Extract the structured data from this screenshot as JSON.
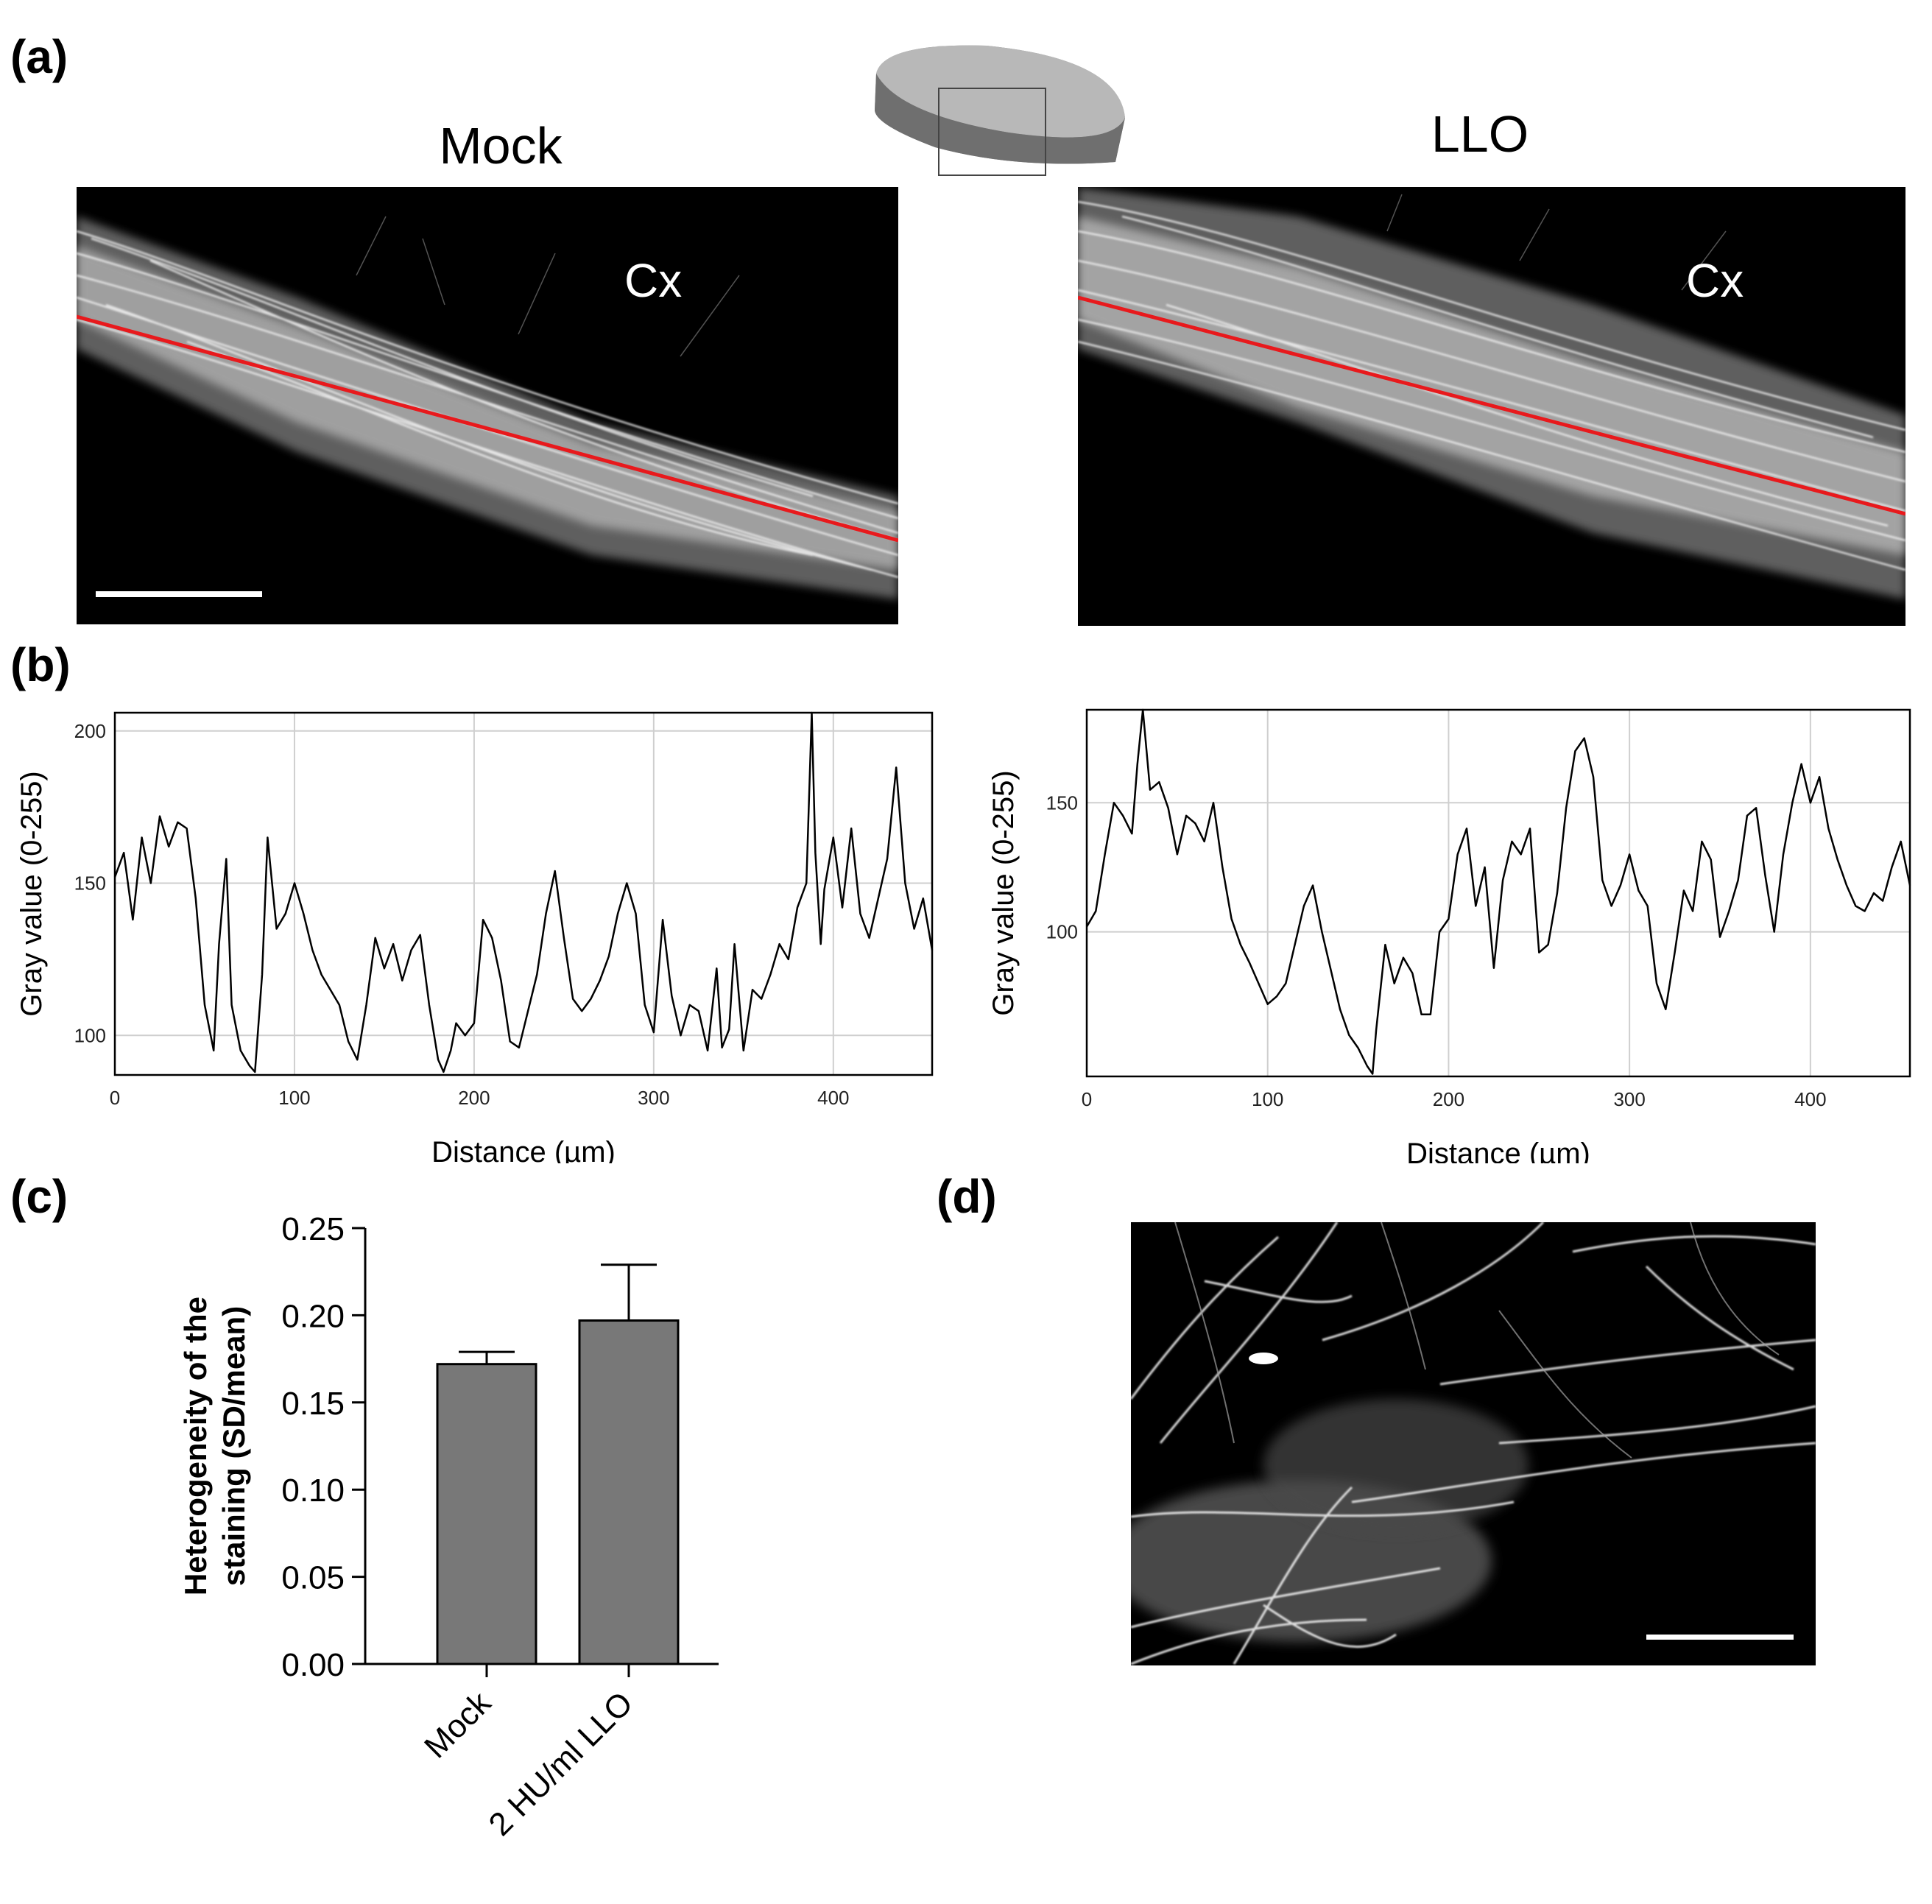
{
  "panels": {
    "a": {
      "label": "(a)",
      "left_title": "Mock",
      "right_title": "LLO",
      "region_label_left": "Cx",
      "region_label_right": "Cx"
    },
    "b": {
      "label": "(b)"
    },
    "c": {
      "label": "(c)"
    },
    "d": {
      "label": "(d)"
    }
  },
  "colors": {
    "profile_line": "#e8191c",
    "bar_fill": "#787878",
    "grid": "#cfcfcf"
  },
  "chart_data": [
    {
      "id": "profile-mock",
      "type": "line",
      "xlabel": "Distance (µm)",
      "ylabel": "Gray value (0-255)",
      "xlim": [
        0,
        455
      ],
      "ylim": [
        87,
        206
      ],
      "xticks": [
        0,
        100,
        200,
        300,
        400
      ],
      "yticks": [
        100,
        150,
        200
      ],
      "grid": true,
      "x": [
        0,
        5,
        10,
        15,
        20,
        25,
        30,
        35,
        40,
        45,
        50,
        55,
        58,
        62,
        65,
        70,
        75,
        78,
        82,
        85,
        90,
        95,
        100,
        105,
        110,
        115,
        120,
        125,
        130,
        135,
        140,
        145,
        150,
        155,
        160,
        165,
        170,
        175,
        180,
        183,
        187,
        190,
        195,
        200,
        205,
        210,
        215,
        220,
        225,
        230,
        235,
        240,
        245,
        250,
        255,
        260,
        265,
        270,
        275,
        280,
        285,
        290,
        295,
        300,
        305,
        310,
        315,
        320,
        325,
        330,
        335,
        338,
        342,
        345,
        350,
        355,
        360,
        365,
        370,
        375,
        380,
        385,
        388,
        390,
        393,
        395,
        400,
        405,
        410,
        415,
        420,
        425,
        430,
        435,
        440,
        445,
        450,
        455
      ],
      "y": [
        152,
        160,
        138,
        165,
        150,
        172,
        162,
        170,
        168,
        145,
        110,
        95,
        130,
        158,
        110,
        95,
        90,
        88,
        120,
        165,
        135,
        140,
        150,
        140,
        128,
        120,
        115,
        110,
        98,
        92,
        110,
        132,
        122,
        130,
        118,
        128,
        133,
        110,
        92,
        88,
        95,
        104,
        100,
        104,
        138,
        132,
        118,
        98,
        96,
        108,
        120,
        140,
        154,
        132,
        112,
        108,
        112,
        118,
        126,
        140,
        150,
        140,
        110,
        101,
        138,
        113,
        100,
        110,
        108,
        95,
        122,
        96,
        102,
        130,
        95,
        115,
        112,
        120,
        130,
        125,
        142,
        150,
        206,
        160,
        130,
        148,
        165,
        142,
        168,
        140,
        132,
        145,
        158,
        188,
        150,
        135,
        145,
        128
      ]
    },
    {
      "id": "profile-llo",
      "type": "line",
      "xlabel": "Distance (µm)",
      "ylabel": "Gray value (0-255)",
      "xlim": [
        0,
        455
      ],
      "ylim": [
        44,
        186
      ],
      "xticks": [
        0,
        100,
        200,
        300,
        400
      ],
      "yticks": [
        100,
        150
      ],
      "grid": true,
      "x": [
        0,
        5,
        10,
        15,
        20,
        25,
        28,
        31,
        35,
        40,
        45,
        50,
        55,
        60,
        65,
        70,
        75,
        80,
        85,
        90,
        95,
        100,
        105,
        110,
        115,
        120,
        125,
        130,
        135,
        140,
        145,
        150,
        155,
        158,
        160,
        165,
        170,
        175,
        180,
        185,
        190,
        195,
        200,
        205,
        210,
        215,
        220,
        225,
        230,
        235,
        240,
        245,
        250,
        255,
        260,
        265,
        270,
        275,
        280,
        285,
        290,
        295,
        300,
        305,
        310,
        315,
        320,
        325,
        330,
        335,
        340,
        345,
        350,
        355,
        360,
        365,
        370,
        375,
        380,
        385,
        390,
        395,
        400,
        405,
        410,
        415,
        420,
        425,
        430,
        435,
        440,
        445,
        450,
        455
      ],
      "y": [
        102,
        108,
        130,
        150,
        145,
        138,
        165,
        186,
        155,
        158,
        148,
        130,
        145,
        142,
        135,
        150,
        125,
        105,
        95,
        88,
        80,
        72,
        75,
        80,
        95,
        110,
        118,
        100,
        85,
        70,
        60,
        55,
        48,
        45,
        62,
        95,
        80,
        90,
        84,
        68,
        68,
        100,
        105,
        130,
        140,
        110,
        125,
        86,
        120,
        135,
        130,
        140,
        92,
        95,
        115,
        148,
        170,
        175,
        160,
        120,
        110,
        118,
        130,
        116,
        110,
        80,
        70,
        92,
        116,
        108,
        135,
        128,
        98,
        108,
        120,
        145,
        148,
        122,
        100,
        130,
        150,
        165,
        150,
        160,
        140,
        128,
        118,
        110,
        108,
        115,
        112,
        125,
        135,
        118
      ]
    },
    {
      "id": "heterogeneity-bars",
      "type": "bar",
      "ylabel": "Heterogeneity of the staining (SD/mean)",
      "categories": [
        "Mock",
        "2 HU/ml LLO"
      ],
      "values": [
        0.172,
        0.197
      ],
      "errors": [
        0.007,
        0.032
      ],
      "ylim": [
        0,
        0.25
      ],
      "yticks": [
        "0.00",
        "0.05",
        "0.10",
        "0.15",
        "0.20",
        "0.25"
      ],
      "grid": false
    }
  ]
}
